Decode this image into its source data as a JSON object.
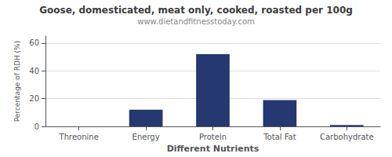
{
  "chart_data": {
    "type": "bar",
    "title": "Goose, domesticated, meat only, cooked, roasted per 100g",
    "subtitle": "www.dietandfitnesstoday.com",
    "xlabel": "Different Nutrients",
    "ylabel": "Percentage of RDH (%)",
    "categories": [
      "Threonine",
      "Energy",
      "Protein",
      "Total Fat",
      "Carbohydrate"
    ],
    "values": [
      0,
      12,
      52,
      19,
      1
    ],
    "color": "#253870",
    "ylim": [
      0,
      65
    ],
    "yticks": [
      0,
      20,
      40,
      60
    ],
    "grid": true
  }
}
